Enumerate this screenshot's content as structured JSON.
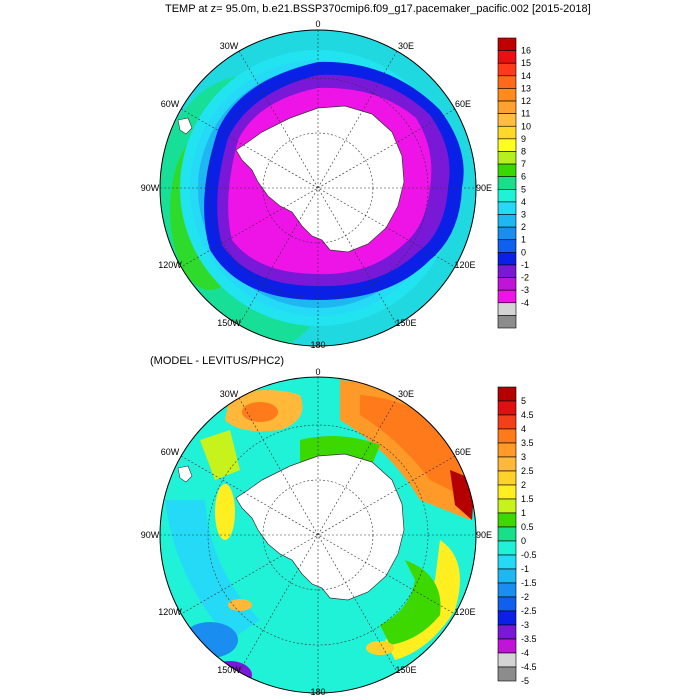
{
  "figure": {
    "title": "TEMP at z=  95.0m, b.e21.BSSP370cmip6.f09_g17.pacemaker_pacific.002 [2015-2018]",
    "subtitle": "(MODEL - LEVITUS/PHC2)"
  },
  "longitudes": [
    "0",
    "30E",
    "60E",
    "90E",
    "120E",
    "150E",
    "180",
    "150W",
    "120W",
    "90W",
    "60W",
    "30W"
  ],
  "top_map": {
    "colorbar_labels": [
      "16",
      "15",
      "14",
      "13",
      "12",
      "11",
      "10",
      "9",
      "8",
      "7",
      "6",
      "5",
      "4",
      "3",
      "2",
      "1",
      "0",
      "-1",
      "-2",
      "-3",
      "-4"
    ],
    "colors": [
      "#c00000",
      "#e81010",
      "#ff3a1a",
      "#ff6a1a",
      "#ff8c1a",
      "#ffa030",
      "#ffbe3c",
      "#ffd82a",
      "#ffff20",
      "#b6ef1e",
      "#38d800",
      "#18e08a",
      "#20f2d8",
      "#24daf6",
      "#1eb7f2",
      "#1a8ef0",
      "#1060f0",
      "#0a20e6",
      "#7a18d8",
      "#c014d8",
      "#ee14e8",
      "#d4d4d4",
      "#8c8c8c"
    ]
  },
  "bottom_map": {
    "colorbar_labels": [
      "5",
      "4.5",
      "4",
      "3.5",
      "3",
      "2.5",
      "2",
      "1.5",
      "1",
      "0.5",
      "0",
      "-0.5",
      "-1",
      "-1.5",
      "-2",
      "-2.5",
      "-3",
      "-3.5",
      "-4",
      "-4.5",
      "-5"
    ],
    "colors": [
      "#b40000",
      "#e01010",
      "#f4401a",
      "#ff7a1a",
      "#ff9a28",
      "#ffb83a",
      "#ffd22a",
      "#ffee20",
      "#c8f21c",
      "#3cd800",
      "#18e08a",
      "#20f2d8",
      "#24daf6",
      "#1eb7f2",
      "#1a8ef0",
      "#1060f0",
      "#0a20e6",
      "#7a18d8",
      "#c014d8",
      "#d4d4d4",
      "#8c8c8c"
    ]
  }
}
